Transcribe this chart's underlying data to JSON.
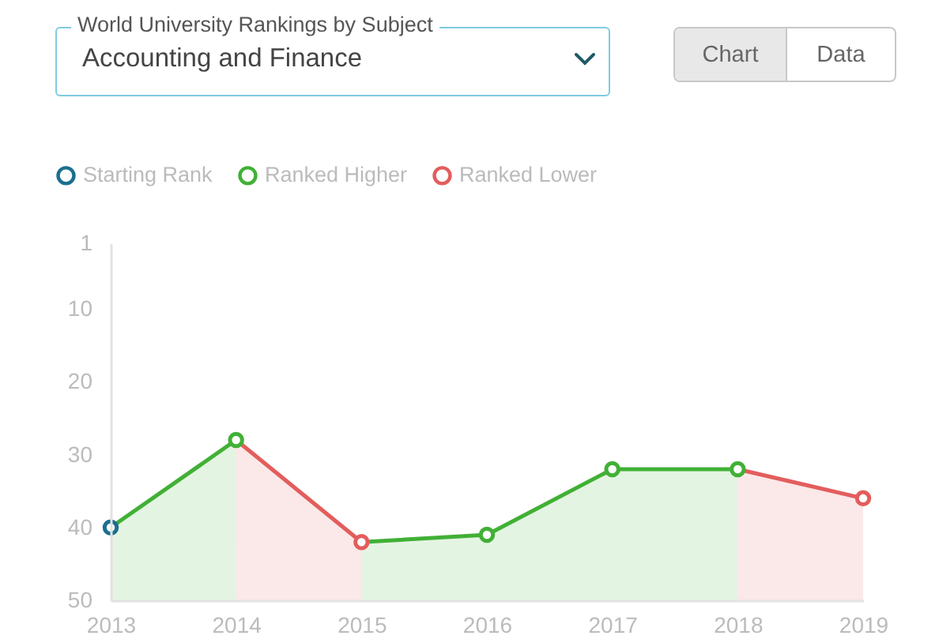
{
  "chart_data": {
    "type": "line",
    "title": "World University Rankings by Subject",
    "subtitle": "Accounting and Finance",
    "annotations": [
      "Chart",
      "Data"
    ],
    "categories": [
      "2013",
      "2014",
      "2015",
      "2016",
      "2017",
      "2018",
      "2019"
    ],
    "series": [
      {
        "color": "#41b035",
        "values": [
          40,
          28,
          null,
          null,
          null,
          null,
          null
        ],
        "lower": [
          40,
          28,
          null,
          null,
          null,
          null,
          null
        ],
        "upper": [
          50,
          50,
          null,
          null,
          null,
          null,
          null
        ]
      },
      {
        "color": "#e35d5d",
        "values": [
          null,
          28,
          42,
          null,
          null,
          null,
          null
        ],
        "lower": [
          null,
          28,
          42,
          null,
          null,
          null,
          null
        ],
        "upper": [
          null,
          50,
          50,
          null,
          null,
          null,
          null
        ]
      },
      {
        "color": "#41b035",
        "values": [
          null,
          null,
          42,
          41,
          32,
          32,
          null
        ],
        "lower": [
          null,
          null,
          42,
          41,
          32,
          32,
          null
        ],
        "upper": [
          null,
          null,
          50,
          50,
          50,
          50,
          null
        ]
      },
      {
        "color": "#e35d5d",
        "values": [
          null,
          null,
          null,
          null,
          null,
          32,
          36
        ],
        "lower": [
          null,
          null,
          null,
          null,
          null,
          32,
          36
        ],
        "upper": [
          null,
          null,
          null,
          null,
          null,
          50,
          50
        ]
      },
      {
        "name": "Starting Rank",
        "type": "scatter",
        "marker": "circle",
        "color": "#1b6f8f",
        "values": [
          40,
          null,
          null,
          null,
          null,
          null,
          null
        ]
      },
      {
        "name": "Ranked Higher",
        "type": "scatter",
        "marker": "circle",
        "color": "#41b035",
        "values": [
          null,
          28,
          null,
          41,
          32,
          32,
          null
        ]
      },
      {
        "name": "Ranked Lower",
        "type": "scatter",
        "marker": "circle",
        "color": "#e35d5d",
        "values": [
          null,
          null,
          42,
          null,
          null,
          null,
          36
        ]
      }
    ],
    "ylim": [
      50,
      1
    ],
    "yticks": [
      1,
      10,
      20,
      30,
      40,
      50
    ],
    "grid": false,
    "legend": "top left",
    "line_style": "solid"
  }
}
